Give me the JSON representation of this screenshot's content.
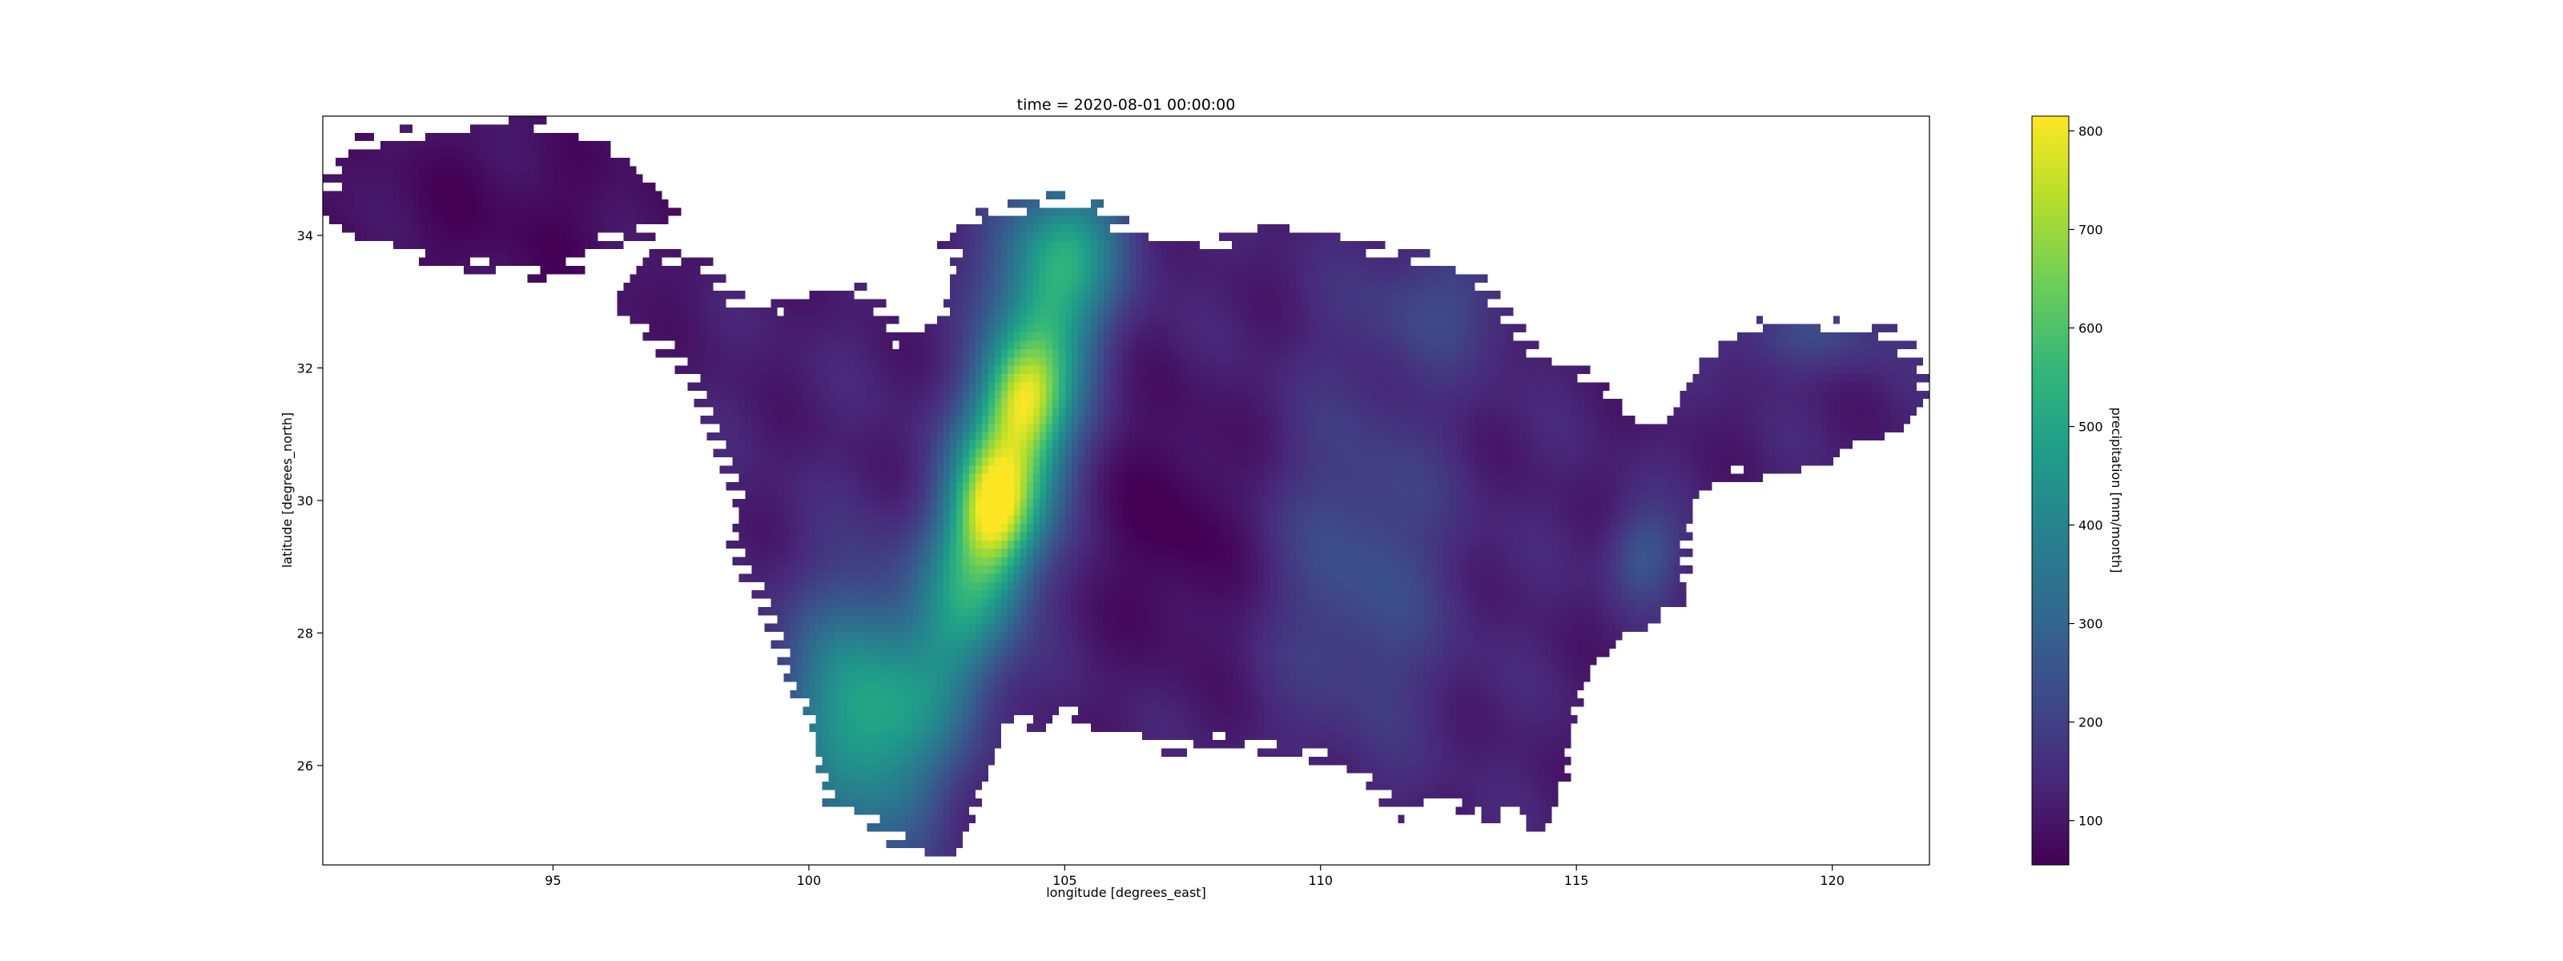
{
  "chart_data": {
    "type": "heatmap",
    "title": "time = 2020-08-01 00:00:00",
    "xlabel": "longitude [degrees_east]",
    "ylabel": "latitude [degrees_north]",
    "xlim": [
      90.5,
      121.9
    ],
    "ylim": [
      24.5,
      35.8
    ],
    "xticks": [
      95,
      100,
      105,
      110,
      115,
      120
    ],
    "yticks": [
      26,
      28,
      30,
      32,
      34
    ],
    "colormap": "viridis",
    "colorbar": {
      "label": "precipitation [mm/month]",
      "range": [
        55,
        815
      ],
      "ticks": [
        100,
        200,
        300,
        400,
        500,
        600,
        700,
        800
      ]
    },
    "grid": false
  },
  "colors": {
    "viridis_stops": [
      "#440154",
      "#482878",
      "#3e4989",
      "#31688e",
      "#26828e",
      "#1f9e89",
      "#35b779",
      "#6ece58",
      "#b5de2b",
      "#fde725"
    ]
  }
}
